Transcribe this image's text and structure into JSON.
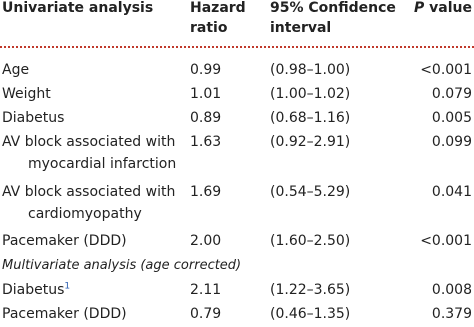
{
  "header": {
    "label": "Univariate analysis",
    "hazard": [
      "Hazard",
      "ratio"
    ],
    "ci": [
      "95% Confidence",
      "interval"
    ],
    "p_italic": "P",
    "p_rest": "value"
  },
  "univariate_rows": [
    {
      "label": [
        "Age"
      ],
      "hazard_ratio": "0.99",
      "ci": "(0.98–1.00)",
      "p": "<0.001"
    },
    {
      "label": [
        "Weight"
      ],
      "hazard_ratio": "1.01",
      "ci": "(1.00–1.02)",
      "p": "0.079"
    },
    {
      "label": [
        "Diabetus"
      ],
      "hazard_ratio": "0.89",
      "ci": "(0.68–1.16)",
      "p": "0.005"
    },
    {
      "label": [
        "AV block associated with",
        "myocardial infarction"
      ],
      "hazard_ratio": "1.63",
      "ci": "(0.92–2.91)",
      "p": "0.099"
    },
    {
      "label": [
        "AV block associated with",
        "cardiomyopathy"
      ],
      "hazard_ratio": "1.69",
      "ci": "(0.54–5.29)",
      "p": "0.041"
    },
    {
      "label": [
        "Pacemaker (DDD)"
      ],
      "hazard_ratio": "2.00",
      "ci": "(1.60–2.50)",
      "p": "<0.001"
    }
  ],
  "multivariate_title": "Multivariate analysis (age corrected)",
  "multivariate_rows": [
    {
      "label": [
        "Diabetus"
      ],
      "footnote": "1",
      "hazard_ratio": "2.11",
      "ci": "(1.22–3.65)",
      "p": "0.008"
    },
    {
      "label": [
        "Pacemaker (DDD)"
      ],
      "hazard_ratio": "0.79",
      "ci": "(0.46–1.35)",
      "p": "0.379"
    }
  ]
}
